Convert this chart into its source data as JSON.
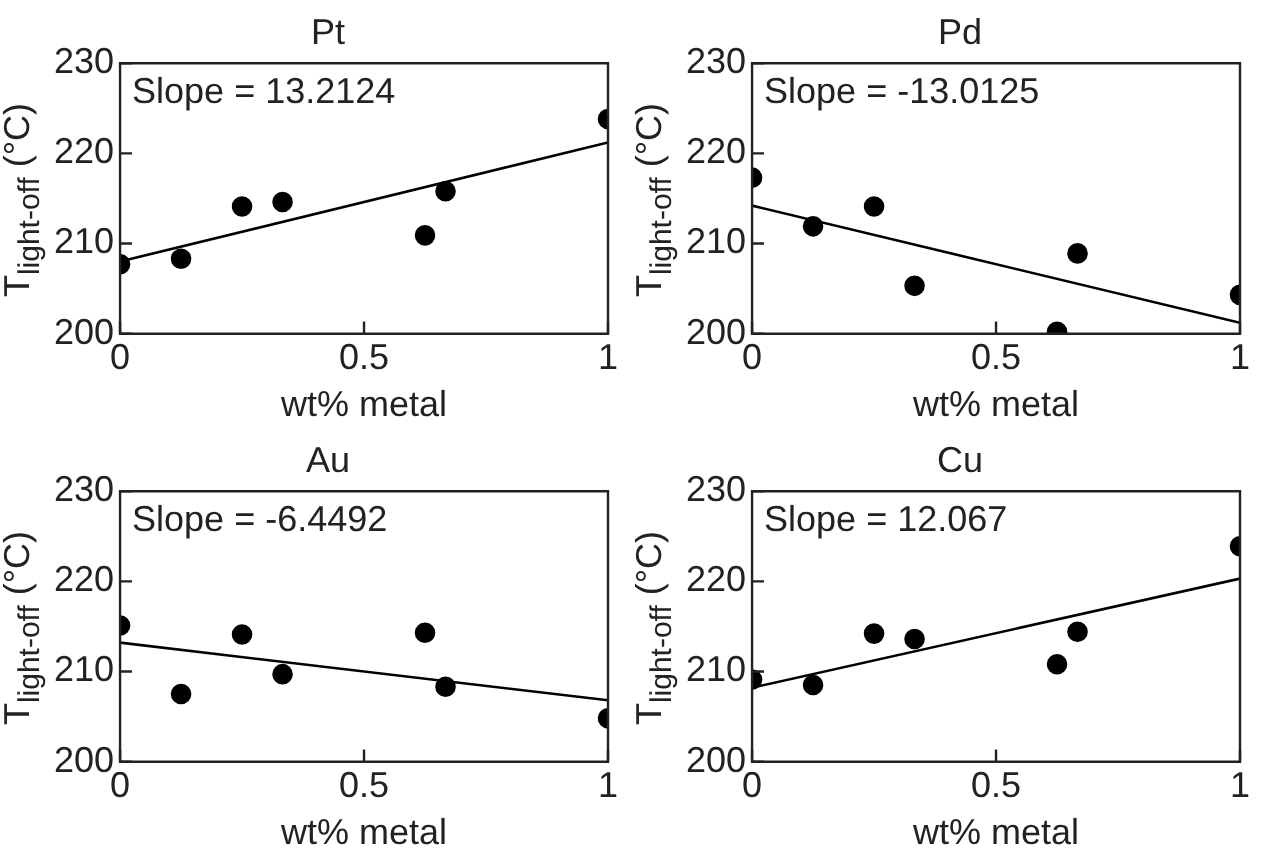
{
  "chart_data": [
    {
      "type": "scatter",
      "title": "Pt",
      "xlabel": "wt% metal",
      "ylabel": "T$_{light-off}$ (°C)",
      "xlim": [
        0,
        1
      ],
      "ylim": [
        200,
        230
      ],
      "xticks": [
        0,
        0.5,
        1
      ],
      "yticks": [
        200,
        210,
        220,
        230
      ],
      "grid": false,
      "legend": false,
      "marker": "circle",
      "annotations": [
        "Slope = 13.2124"
      ],
      "series": [
        {
          "color": "#000000",
          "x": [
            0,
            0.125,
            0.25,
            0.333,
            0.625,
            0.667,
            1
          ],
          "values": [
            207.7,
            208.3,
            214.1,
            214.6,
            210.9,
            215.8,
            223.8
          ]
        },
        {
          "type": "line",
          "color": "#000000",
          "marker": "none",
          "x": [
            0,
            1
          ],
          "values": [
            208,
            221.2
          ]
        }
      ]
    },
    {
      "type": "scatter",
      "title": "Pd",
      "xlabel": "wt% metal",
      "ylabel": "T$_{light-off}$ (°C)",
      "xlim": [
        0,
        1
      ],
      "ylim": [
        200,
        230
      ],
      "xticks": [
        0,
        0.5,
        1
      ],
      "yticks": [
        200,
        210,
        220,
        230
      ],
      "grid": false,
      "legend": false,
      "marker": "circle",
      "annotations": [
        "Slope = -13.0125"
      ],
      "series": [
        {
          "color": "#000000",
          "x": [
            0,
            0.125,
            0.25,
            0.333,
            0.625,
            0.667,
            1
          ],
          "values": [
            217.3,
            211.9,
            214.1,
            205.3,
            200.2,
            208.9,
            204.3
          ]
        },
        {
          "type": "line",
          "color": "#000000",
          "marker": "none",
          "x": [
            0,
            1
          ],
          "values": [
            214.2,
            201.2
          ]
        }
      ]
    },
    {
      "type": "scatter",
      "title": "Au",
      "xlabel": "wt% metal",
      "ylabel": "T$_{light-off}$ (°C)",
      "xlim": [
        0,
        1
      ],
      "ylim": [
        200,
        230
      ],
      "xticks": [
        0,
        0.5,
        1
      ],
      "yticks": [
        200,
        210,
        220,
        230
      ],
      "grid": false,
      "legend": false,
      "marker": "circle",
      "annotations": [
        "Slope = -6.4492"
      ],
      "series": [
        {
          "color": "#000000",
          "x": [
            0,
            0.125,
            0.25,
            0.333,
            0.625,
            0.667,
            1
          ],
          "values": [
            215.1,
            207.5,
            214.1,
            209.7,
            214.3,
            208.3,
            204.8
          ]
        },
        {
          "type": "line",
          "color": "#000000",
          "marker": "none",
          "x": [
            0,
            1
          ],
          "values": [
            213.2,
            206.8
          ]
        }
      ]
    },
    {
      "type": "scatter",
      "title": "Cu",
      "xlabel": "wt% metal",
      "ylabel": "T$_{light-off}$ (°C)",
      "xlim": [
        0,
        1
      ],
      "ylim": [
        200,
        230
      ],
      "xticks": [
        0,
        0.5,
        1
      ],
      "yticks": [
        200,
        210,
        220,
        230
      ],
      "grid": false,
      "legend": false,
      "marker": "circle",
      "annotations": [
        "Slope = 12.067"
      ],
      "series": [
        {
          "color": "#000000",
          "x": [
            0,
            0.125,
            0.25,
            0.333,
            0.625,
            0.667,
            1
          ],
          "values": [
            209.1,
            208.5,
            214.2,
            213.6,
            210.8,
            214.4,
            223.9
          ]
        },
        {
          "type": "line",
          "color": "#000000",
          "marker": "none",
          "x": [
            0,
            1
          ],
          "values": [
            208.2,
            220.3
          ]
        }
      ]
    }
  ]
}
